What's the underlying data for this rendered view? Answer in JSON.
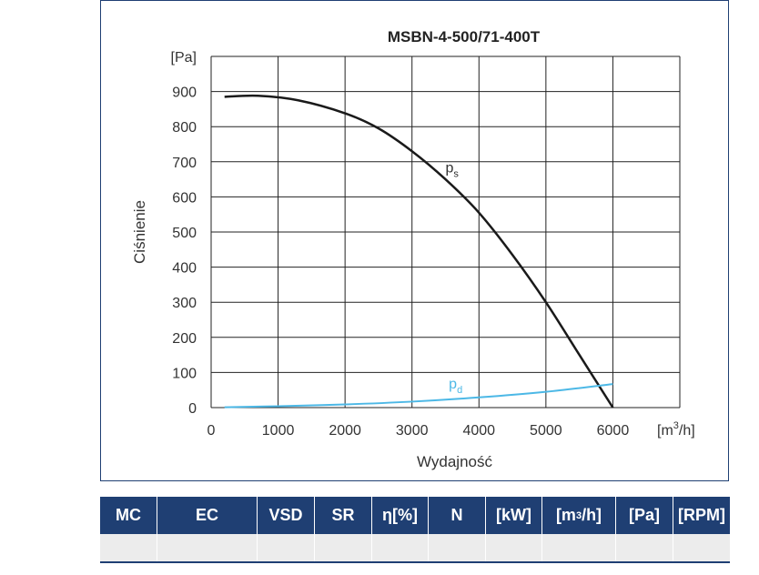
{
  "chart_data": {
    "type": "line",
    "title": "MSBN-4-500/71-400T",
    "xlabel": "Wydajność",
    "ylabel": "Ciśnienie",
    "x_unit": "[m3/h]",
    "y_unit": "[Pa]",
    "xlim": [
      0,
      7000
    ],
    "ylim": [
      0,
      1000
    ],
    "x_ticks": [
      "0",
      "1000",
      "2000",
      "3000",
      "4000",
      "5000",
      "6000"
    ],
    "y_ticks": [
      "0",
      "100",
      "200",
      "300",
      "400",
      "500",
      "600",
      "700",
      "800",
      "900"
    ],
    "grid": true,
    "series": [
      {
        "name": "ps",
        "label_main": "p",
        "label_sub": "s",
        "color": "#1a1a1a",
        "x": [
          200,
          700,
          1300,
          2000,
          2500,
          3000,
          3500,
          4000,
          4500,
          5000,
          5500,
          6000
        ],
        "y": [
          885,
          888,
          875,
          838,
          795,
          730,
          650,
          555,
          435,
          300,
          150,
          0
        ]
      },
      {
        "name": "pd",
        "label_main": "p",
        "label_sub": "d",
        "color": "#4cb8e6",
        "x": [
          200,
          1000,
          2000,
          3000,
          4000,
          5000,
          6000
        ],
        "y": [
          1,
          4,
          9,
          17,
          29,
          45,
          67
        ]
      }
    ]
  },
  "table": {
    "headers": [
      "MC",
      "EC",
      "VSD",
      "SR",
      "η[%]",
      "N",
      "[kW]",
      "[m³/h]",
      "[Pa]",
      "[RPM]"
    ],
    "rows": [
      [
        "",
        "",
        "",
        "",
        "",
        "",
        "",
        "",
        "",
        ""
      ]
    ]
  },
  "colors": {
    "header_bg": "#1f3f73",
    "row_bg": "#ececec",
    "grid": "#222222"
  }
}
